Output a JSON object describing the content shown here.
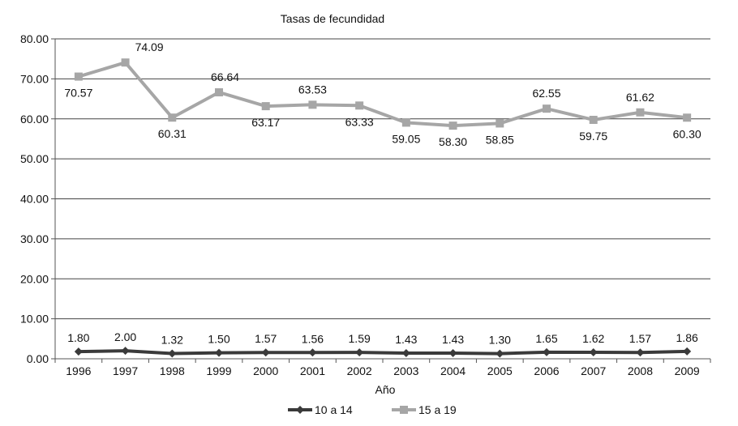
{
  "chart_data": {
    "type": "line",
    "title": "Tasas de fecundidad",
    "xlabel": "Año",
    "ylabel": "",
    "ylim": [
      0,
      80
    ],
    "yticks": [
      "0.00",
      "10.00",
      "20.00",
      "30.00",
      "40.00",
      "50.00",
      "60.00",
      "70.00",
      "80.00"
    ],
    "categories": [
      "1996",
      "1997",
      "1998",
      "1999",
      "2000",
      "2001",
      "2002",
      "2003",
      "2004",
      "2005",
      "2006",
      "2007",
      "2008",
      "2009"
    ],
    "series": [
      {
        "name": "10 a 14",
        "color": "#3a3a3a",
        "marker": "diamond",
        "values": [
          1.8,
          2.0,
          1.32,
          1.5,
          1.57,
          1.56,
          1.59,
          1.43,
          1.43,
          1.3,
          1.65,
          1.62,
          1.57,
          1.86
        ],
        "labels": [
          "1.80",
          "2.00",
          "1.32",
          "1.50",
          "1.57",
          "1.56",
          "1.59",
          "1.43",
          "1.43",
          "1.30",
          "1.65",
          "1.62",
          "1.57",
          "1.86"
        ]
      },
      {
        "name": "15 a 19",
        "color": "#a6a6a6",
        "marker": "square",
        "values": [
          70.57,
          74.09,
          60.31,
          66.64,
          63.17,
          63.53,
          63.33,
          59.05,
          58.3,
          58.85,
          62.55,
          59.75,
          61.62,
          60.3
        ],
        "labels": [
          "70.57",
          "74.09",
          "60.31",
          "66.64",
          "63.17",
          "63.53",
          "63.33",
          "59.05",
          "58.30",
          "58.85",
          "62.55",
          "59.75",
          "61.62",
          "60.30"
        ]
      }
    ],
    "grid": true,
    "legend": "bottom"
  }
}
